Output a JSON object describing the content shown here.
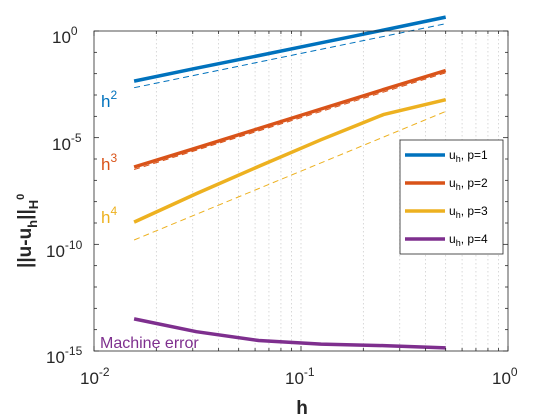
{
  "chart_data": {
    "type": "line",
    "xscale": "log",
    "yscale": "log",
    "xlim": [
      0.01,
      1
    ],
    "ylim": [
      1e-15,
      1
    ],
    "xticks": [
      {
        "base": "10",
        "exp": "-2"
      },
      {
        "base": "10",
        "exp": "-1"
      },
      {
        "base": "10",
        "exp": "0"
      }
    ],
    "yticks": [
      {
        "value": "10",
        "exp": "0"
      },
      {
        "value": "10",
        "exp": "-5"
      },
      {
        "value": "10",
        "exp": "-10"
      },
      {
        "value": "10",
        "exp": "-15"
      }
    ],
    "xlabel": "h",
    "ylabel": {
      "main": "||u-u",
      "sub1": "h",
      "mid": "||",
      "sub2": "H",
      "sup2": "0"
    },
    "grid": {
      "x_minor": true,
      "x_major": true,
      "y": false
    },
    "legend_position": "right",
    "series": [
      {
        "name_main": "u",
        "name_sub": "h",
        "name_rest": ", p=1",
        "color": "#0072BD",
        "x": [
          0.015625,
          0.03125,
          0.0625,
          0.125,
          0.25,
          0.5
        ],
        "y": [
          0.0045,
          0.018,
          0.07,
          0.28,
          1.1,
          4.5
        ]
      },
      {
        "name_main": "u",
        "name_sub": "h",
        "name_rest": ", p=2",
        "color": "#D95319",
        "x": [
          0.015625,
          0.03125,
          0.0625,
          0.125,
          0.25,
          0.5
        ],
        "y": [
          4.2e-07,
          3.3e-06,
          2.7e-05,
          0.00022,
          0.0018,
          0.014
        ]
      },
      {
        "name_main": "u",
        "name_sub": "h",
        "name_rest": ", p=3",
        "color": "#EDB120",
        "x": [
          0.015625,
          0.03125,
          0.0625,
          0.125,
          0.25,
          0.5
        ],
        "y": [
          1.1e-09,
          2.4e-08,
          4.5e-07,
          8e-06,
          0.00012,
          0.0006
        ]
      },
      {
        "name_main": "u",
        "name_sub": "h",
        "name_rest": ", p=4",
        "color": "#7E2F8E",
        "x": [
          0.015625,
          0.03125,
          0.0625,
          0.125,
          0.25,
          0.5
        ],
        "y": [
          3.2e-14,
          8e-15,
          3.1e-15,
          2.1e-15,
          1.8e-15,
          1.4e-15
        ]
      }
    ],
    "reference_lines": [
      {
        "color": "#0072BD",
        "x": [
          0.015625,
          0.5
        ],
        "y": [
          0.0022,
          2.2
        ]
      },
      {
        "color": "#D95319",
        "x": [
          0.015625,
          0.5
        ],
        "y": [
          3.2e-07,
          0.011
        ]
      },
      {
        "color": "#EDB120",
        "x": [
          0.015625,
          0.5
        ],
        "y": [
          1.6e-10,
          0.00017
        ]
      }
    ],
    "slope_labels": [
      {
        "base": "h",
        "exp": "2",
        "color": "#0072BD"
      },
      {
        "base": "h",
        "exp": "3",
        "color": "#D95319"
      },
      {
        "base": "h",
        "exp": "4",
        "color": "#EDB120"
      }
    ],
    "annotation": {
      "text": "Machine error",
      "color": "#7E2F8E"
    }
  }
}
